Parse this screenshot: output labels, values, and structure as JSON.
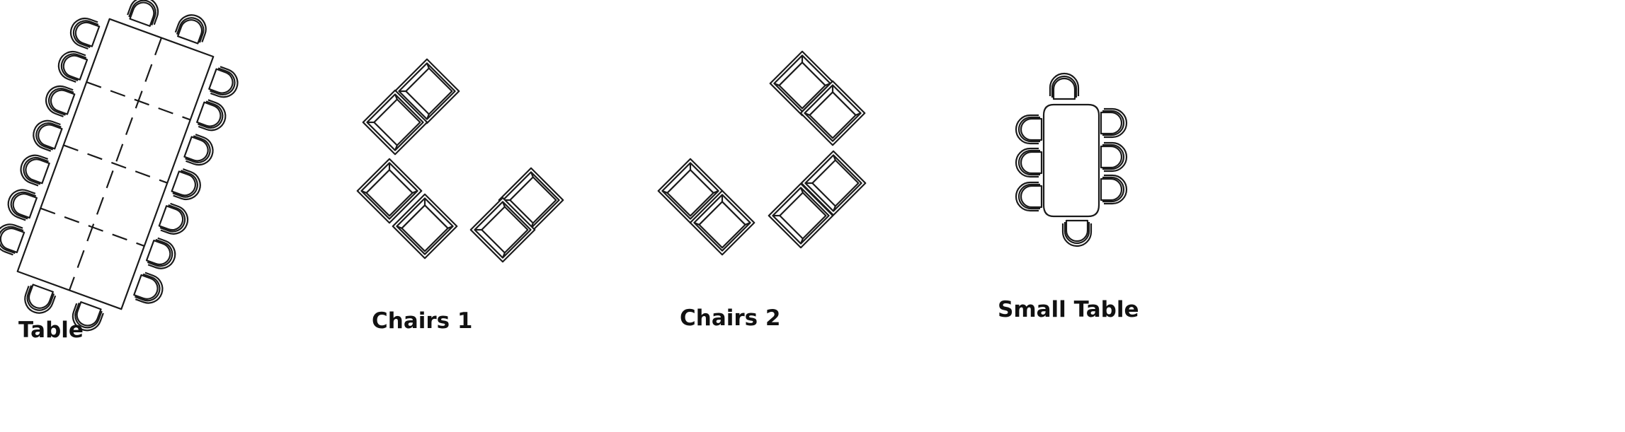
{
  "labels": {
    "table": "Table",
    "chairs1": "Chairs 1",
    "chairs2": "Chairs 2",
    "small_table": "Small Table"
  },
  "colors": {
    "stroke": "#1a1a1a",
    "background": "#ffffff",
    "text": "#111111"
  }
}
